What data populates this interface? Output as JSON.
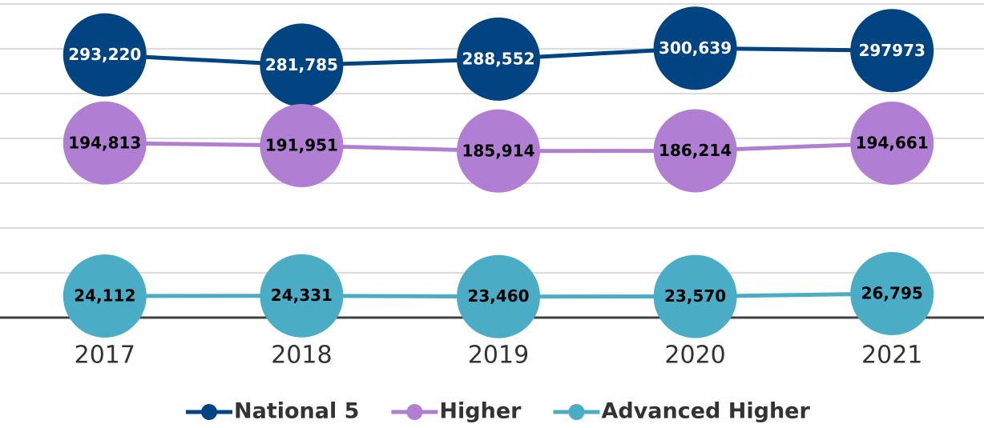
{
  "chart_data": {
    "type": "line",
    "categories": [
      "2017",
      "2018",
      "2019",
      "2020",
      "2021"
    ],
    "series": [
      {
        "name": "National 5",
        "color": "#024381",
        "label_color": "#ffffff",
        "values": [
          293220,
          281785,
          288552,
          300639,
          297973
        ],
        "value_labels": [
          "293,220",
          "281,785",
          "288,552",
          "300,639",
          "297973"
        ]
      },
      {
        "name": "Higher",
        "color": "#b07fd3",
        "label_color": "#000000",
        "values": [
          194813,
          191951,
          185914,
          186214,
          194661
        ],
        "value_labels": [
          "194,813",
          "191,951",
          "185,914",
          "186,214",
          "194,661"
        ]
      },
      {
        "name": "Advanced Higher",
        "color": "#4bacc6",
        "label_color": "#000000",
        "values": [
          24112,
          24331,
          23460,
          23570,
          26795
        ],
        "value_labels": [
          "24,112",
          "24,331",
          "23,460",
          "23,570",
          "26,795"
        ]
      }
    ],
    "ylim": [
      0,
      350000
    ],
    "yticks": [
      0,
      50000,
      100000,
      150000,
      200000,
      250000,
      300000,
      350000
    ],
    "grid": true,
    "legend": "bottom"
  }
}
